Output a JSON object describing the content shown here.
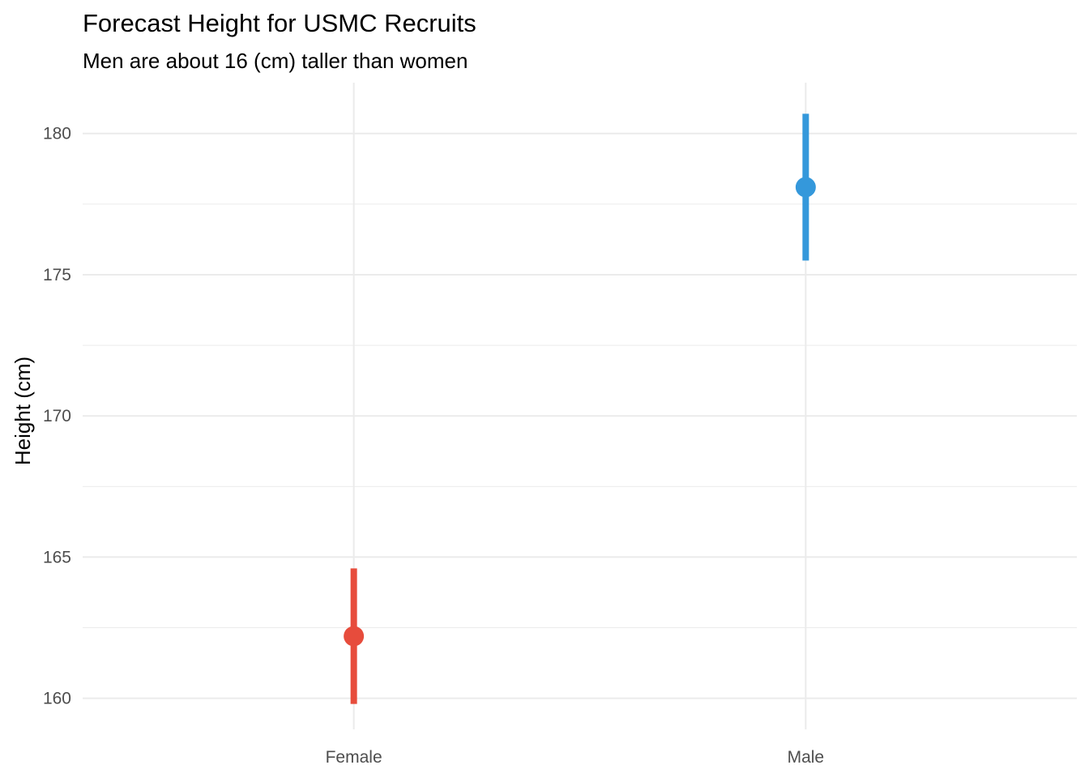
{
  "chart_data": {
    "type": "scatter",
    "title": "Forecast Height for USMC Recruits",
    "subtitle": "Men are about 16 (cm) taller than women",
    "xlabel": "",
    "ylabel": "Height (cm)",
    "categories": [
      "Female",
      "Male"
    ],
    "yticks": [
      160,
      165,
      170,
      175,
      180
    ],
    "ylim": [
      158.9,
      181.8
    ],
    "grid": true,
    "legend": "none",
    "series": [
      {
        "category": "Female",
        "estimate": 162.2,
        "lower": 159.8,
        "upper": 164.6,
        "color": "#E74C3C"
      },
      {
        "category": "Male",
        "estimate": 178.1,
        "lower": 175.5,
        "upper": 180.7,
        "color": "#3498DB"
      }
    ]
  }
}
